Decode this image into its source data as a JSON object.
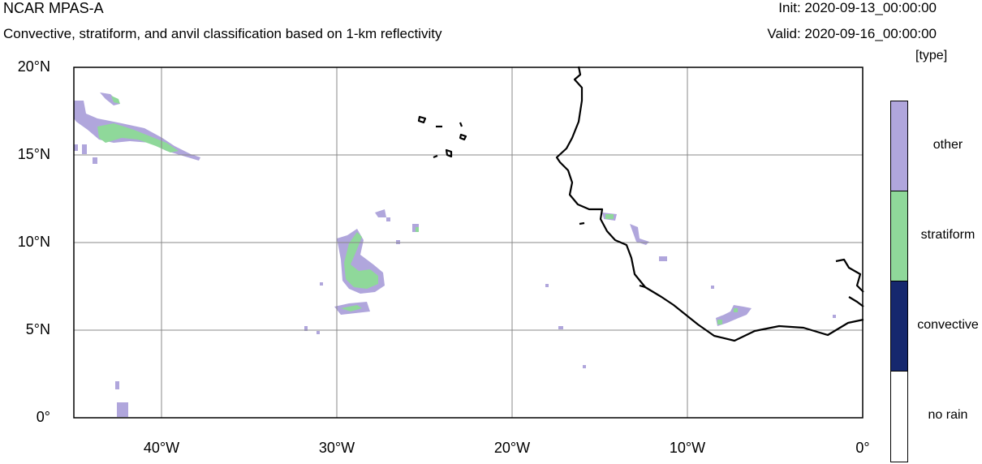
{
  "header": {
    "model": "NCAR MPAS-A",
    "description": "Convective, stratiform, and anvil classification based on 1-km reflectivity",
    "init": "Init: 2020-09-13_00:00:00",
    "valid": "Valid: 2020-09-16_00:00:00",
    "units": "[type]"
  },
  "map": {
    "lon_range": [
      -45,
      0
    ],
    "lat_range": [
      0,
      20
    ],
    "lat_ticks": [
      {
        "value": 20,
        "label": "20°N"
      },
      {
        "value": 15,
        "label": "15°N"
      },
      {
        "value": 10,
        "label": "10°N"
      },
      {
        "value": 5,
        "label": "5°N"
      },
      {
        "value": 0,
        "label": "0°"
      }
    ],
    "lon_ticks": [
      {
        "value": -40,
        "label": "40°W"
      },
      {
        "value": -30,
        "label": "30°W"
      },
      {
        "value": -20,
        "label": "20°W"
      },
      {
        "value": -10,
        "label": "10°W"
      },
      {
        "value": 0,
        "label": "0°"
      }
    ],
    "gridlines": true
  },
  "legend": {
    "categories": [
      {
        "label": "other",
        "color": "#b0a6dc"
      },
      {
        "label": "stratiform",
        "color": "#8fd89a"
      },
      {
        "label": "convective",
        "color": "#16286e"
      },
      {
        "label": "no rain",
        "color": "#ffffff"
      }
    ]
  }
}
